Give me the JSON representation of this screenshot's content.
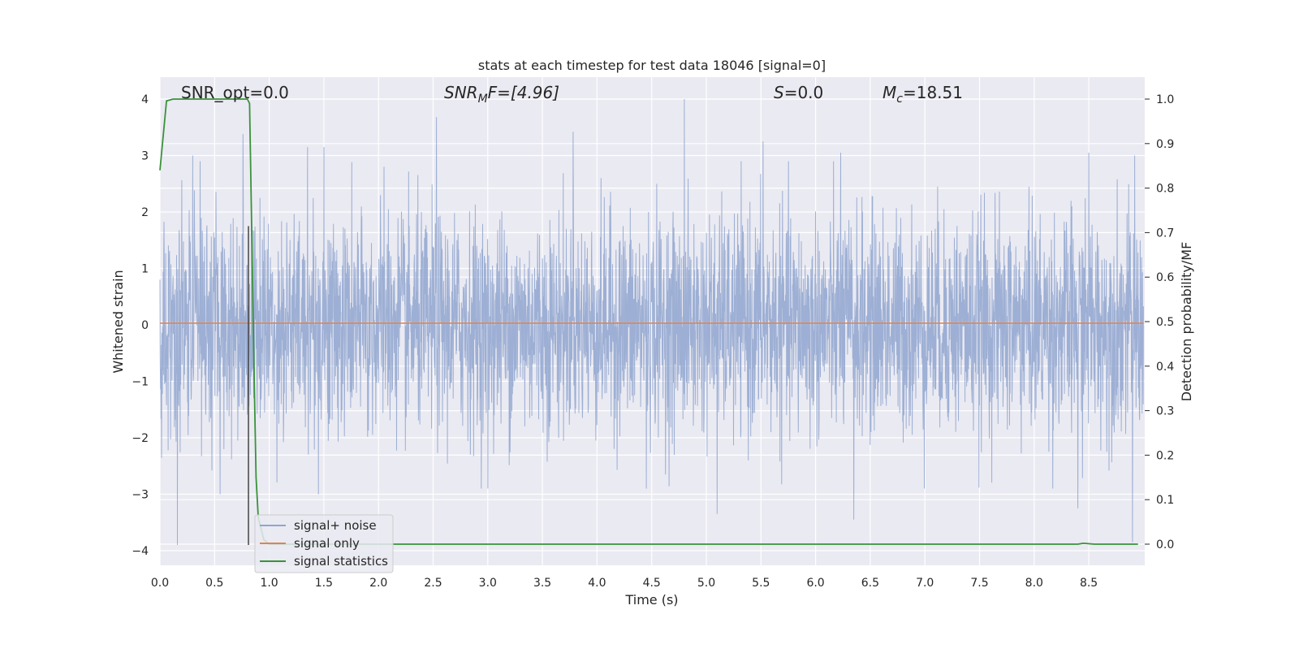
{
  "chart_data": {
    "type": "line",
    "title": "stats at each timestep for test data 18046 [signal=0]",
    "xlabel": "Time (s)",
    "ylabel": "Whitened strain",
    "ylabel_right": "Detection probability/MF",
    "xlim": [
      0.0,
      9.0
    ],
    "ylim": [
      -4.3,
      4.4
    ],
    "ylim_right": [
      -0.05,
      1.04
    ],
    "x_ticks": [
      "0.0",
      "0.5",
      "1.0",
      "1.5",
      "2.0",
      "2.5",
      "3.0",
      "3.5",
      "4.0",
      "4.5",
      "5.0",
      "5.5",
      "6.0",
      "6.5",
      "7.0",
      "7.5",
      "8.0",
      "8.5"
    ],
    "y_ticks": [
      "4",
      "3",
      "2",
      "1",
      "0",
      "−1",
      "−2",
      "−3",
      "−4"
    ],
    "y_ticks_right": [
      "1.0",
      "0.9",
      "0.8",
      "0.7",
      "0.6",
      "0.5",
      "0.4",
      "0.3",
      "0.2",
      "0.1",
      "0.0"
    ],
    "grid": true,
    "legend_position": "lower-left",
    "annotations": {
      "snr_opt": "SNR_opt=0.0",
      "snr_mf_main": "SNR",
      "snr_mf_sub": "M",
      "snr_mf_rest": "F=[4.96]",
      "s_main": "S",
      "s_rest": "=0.0",
      "mc_main": "M",
      "mc_sub": "c",
      "mc_rest": "=18.51"
    },
    "series": [
      {
        "name": "signal+ noise",
        "axis": "left",
        "color": "#8fa5cf",
        "description": "whitened strain noise, roughly within -2 to 2.5 with peaks to about 4.0 and -3.9",
        "envelope_upper_peaks": [
          [
            0.3,
            3.0
          ],
          [
            0.76,
            3.38
          ],
          [
            1.35,
            3.15
          ],
          [
            1.5,
            3.15
          ],
          [
            2.05,
            2.8
          ],
          [
            2.53,
            3.68
          ],
          [
            3.78,
            3.42
          ],
          [
            4.8,
            4.0
          ],
          [
            5.52,
            3.25
          ],
          [
            6.23,
            3.05
          ],
          [
            8.5,
            3.05
          ],
          [
            8.92,
            3.0
          ]
        ],
        "envelope_lower_peaks": [
          [
            0.16,
            -3.9
          ],
          [
            0.55,
            -3.0
          ],
          [
            1.45,
            -3.0
          ],
          [
            3.0,
            -2.9
          ],
          [
            4.45,
            -2.9
          ],
          [
            5.1,
            -3.35
          ],
          [
            6.35,
            -3.45
          ],
          [
            8.4,
            -3.25
          ],
          [
            8.9,
            -3.85
          ]
        ]
      },
      {
        "name": "signal only",
        "axis": "left",
        "color": "#dd8452",
        "x": [
          0.0,
          9.0
        ],
        "y": [
          0.03,
          0.03
        ]
      },
      {
        "name": "signal statistics",
        "axis": "right",
        "color": "#3a923a",
        "x": [
          0.0,
          0.06,
          0.12,
          0.2,
          0.4,
          0.6,
          0.8,
          0.82,
          0.84,
          0.86,
          0.88,
          0.9,
          0.95,
          1.0,
          2.0,
          4.0,
          6.0,
          8.0,
          8.4,
          8.45,
          8.55,
          8.95
        ],
        "y": [
          0.84,
          0.996,
          1.0,
          1.0,
          1.0,
          1.0,
          1.0,
          0.99,
          0.7,
          0.4,
          0.15,
          0.06,
          0.01,
          0.0,
          0.0,
          0.0,
          0.0,
          0.0,
          0.0,
          0.002,
          0.0,
          0.0
        ]
      }
    ],
    "vertical_marker": {
      "x": 0.81,
      "color": "#444444"
    }
  }
}
